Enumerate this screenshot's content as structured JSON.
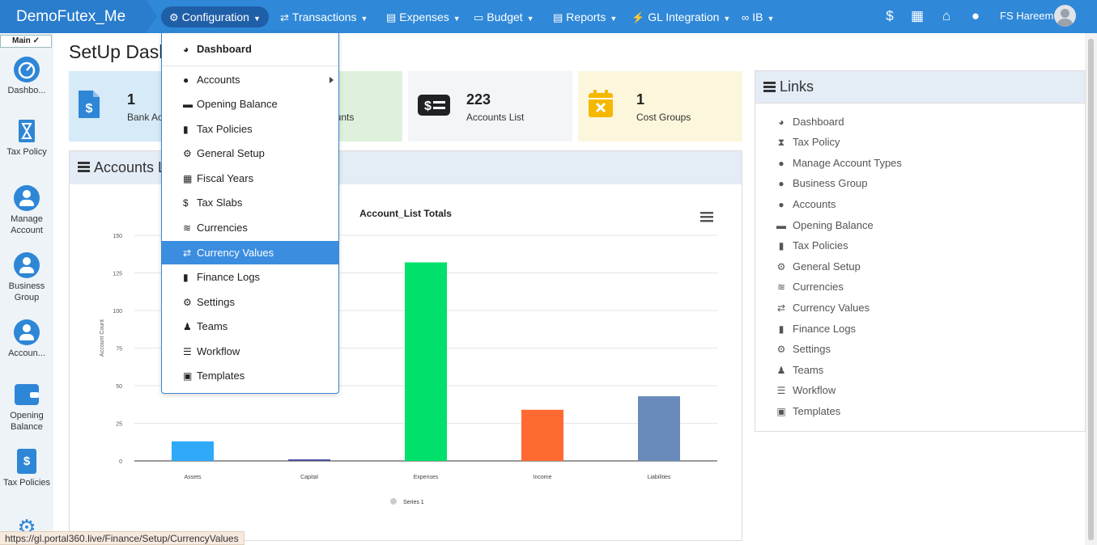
{
  "app": {
    "brand": "DemoFutex_Me",
    "nav": [
      {
        "label": "Configuration",
        "icon": "gears-icon"
      },
      {
        "label": "Transactions",
        "icon": "exchange-icon"
      },
      {
        "label": "Expenses",
        "icon": "file-invoice-icon"
      },
      {
        "label": "Budget",
        "icon": "wallet-icon"
      },
      {
        "label": "Reports",
        "icon": "report-icon"
      },
      {
        "label": "GL Integration",
        "icon": "plug-icon"
      },
      {
        "label": "IB",
        "icon": "link-icon"
      }
    ],
    "top_icons": [
      "dollar-icon",
      "grid-icon",
      "home-icon",
      "drop-icon"
    ],
    "user_name": "FS Hareem"
  },
  "sidebar": {
    "main_label": "Main",
    "items": [
      {
        "label": "Dashbo...",
        "icon": "dashboard-icon"
      },
      {
        "label": "Tax Policy",
        "icon": "hourglass-icon"
      },
      {
        "label": "Manage Account",
        "icon": "user-circle-icon"
      },
      {
        "label": "Business Group",
        "icon": "user-circle-icon"
      },
      {
        "label": "Accoun...",
        "icon": "user-circle-icon"
      },
      {
        "label": "Opening Balance",
        "icon": "wallet-icon"
      },
      {
        "label": "Tax Policies",
        "icon": "file-invoice-dollar-icon"
      }
    ]
  },
  "page": {
    "title": "SetUp Dashboard"
  },
  "cards": [
    {
      "value": "1",
      "label": "Bank Accounts",
      "icon": "file-invoice-dollar-icon",
      "bg": "#d6eaf7"
    },
    {
      "value": "",
      "label": "Accounts",
      "icon": "",
      "bg": "#dff1dc"
    },
    {
      "value": "223",
      "label": "Accounts List",
      "icon": "money-bill-icon",
      "bg": "#f3f5f7"
    },
    {
      "value": "1",
      "label": "Cost Groups",
      "icon": "calendar-x-icon",
      "bg": "#fbf6dc"
    }
  ],
  "accounts_panel": {
    "title": "Accounts List"
  },
  "chart_data": {
    "type": "bar",
    "title": "Account_List Totals",
    "ylabel": "Account Count",
    "xlabel": "",
    "categories": [
      "Assets",
      "Capital",
      "Expenses",
      "Income",
      "Liabilities"
    ],
    "values": [
      13,
      1,
      132,
      34,
      43
    ],
    "colors": [
      "#2eaaf8",
      "#43499a",
      "#00e06a",
      "#ff6a33",
      "#6a8abb"
    ],
    "ylim": [
      0,
      150
    ],
    "yticks": [
      0,
      25,
      50,
      75,
      100,
      125,
      150
    ],
    "legend": [
      "Series 1"
    ],
    "legend_position": "bottom"
  },
  "links": {
    "title": "Links",
    "items": [
      {
        "label": "Dashboard",
        "icon": "dashboard-icon"
      },
      {
        "label": "Tax Policy",
        "icon": "hourglass-icon"
      },
      {
        "label": "Manage Account Types",
        "icon": "user-circle-icon"
      },
      {
        "label": "Business Group",
        "icon": "user-circle-icon"
      },
      {
        "label": "Accounts",
        "icon": "user-circle-icon"
      },
      {
        "label": "Opening Balance",
        "icon": "wallet-icon"
      },
      {
        "label": "Tax Policies",
        "icon": "file-invoice-dollar-icon"
      },
      {
        "label": "General Setup",
        "icon": "gears-icon"
      },
      {
        "label": "Currencies",
        "icon": "coins-icon"
      },
      {
        "label": "Currency Values",
        "icon": "exchange-icon"
      },
      {
        "label": "Finance Logs",
        "icon": "file-icon"
      },
      {
        "label": "Settings",
        "icon": "gears-icon"
      },
      {
        "label": "Teams",
        "icon": "user-tie-icon"
      },
      {
        "label": "Workflow",
        "icon": "list-alt-icon"
      },
      {
        "label": "Templates",
        "icon": "chalkboard-icon"
      }
    ]
  },
  "dropdown": {
    "items": [
      {
        "label": "Dashboard",
        "icon": "dashboard-icon"
      },
      {
        "label": "Accounts",
        "icon": "user-circle-icon"
      },
      {
        "label": "Opening Balance",
        "icon": "wallet-icon"
      },
      {
        "label": "Tax Policies",
        "icon": "file-invoice-dollar-icon"
      },
      {
        "label": "General Setup",
        "icon": "gears-icon"
      },
      {
        "label": "Fiscal Years",
        "icon": "calendar-icon"
      },
      {
        "label": "Tax Slabs",
        "icon": "dollar-icon"
      },
      {
        "label": "Currencies",
        "icon": "coins-icon"
      },
      {
        "label": "Currency Values",
        "icon": "exchange-icon"
      },
      {
        "label": "Finance Logs",
        "icon": "file-icon"
      },
      {
        "label": "Settings",
        "icon": "gears-icon"
      },
      {
        "label": "Teams",
        "icon": "user-tie-icon"
      },
      {
        "label": "Workflow",
        "icon": "list-alt-icon"
      },
      {
        "label": "Templates",
        "icon": "chalkboard-icon"
      }
    ],
    "active": "Currency Values"
  },
  "status_url": "https://gl.portal360.live/Finance/Setup/CurrencyValues"
}
